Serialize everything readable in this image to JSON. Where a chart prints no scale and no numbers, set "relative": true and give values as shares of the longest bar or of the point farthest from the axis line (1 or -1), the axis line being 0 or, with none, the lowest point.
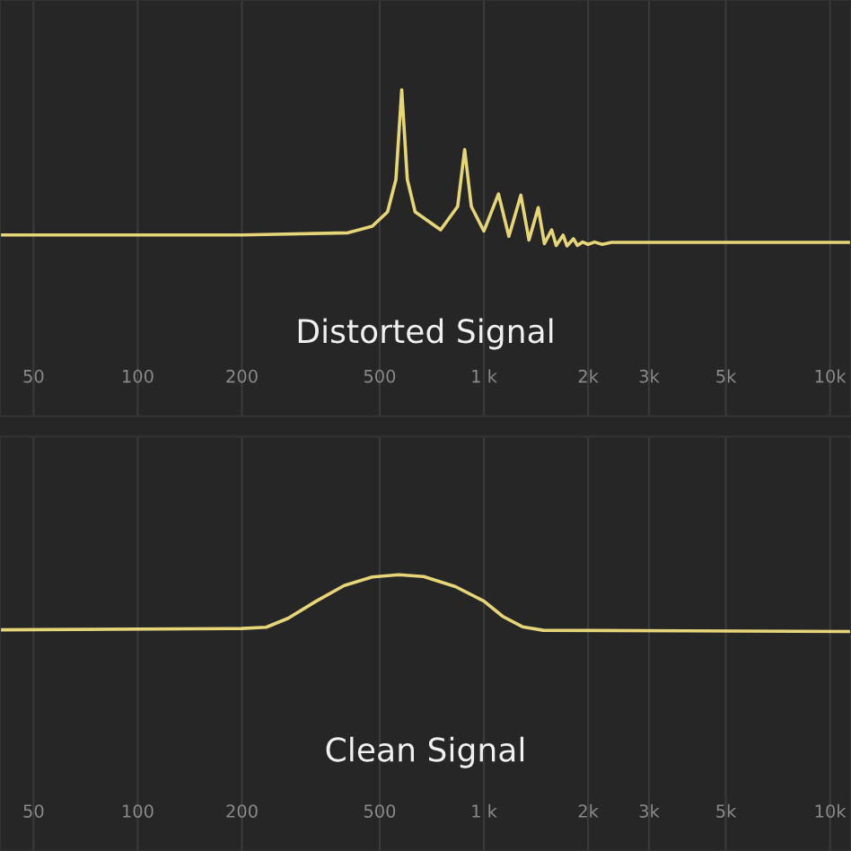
{
  "chart_data": [
    {
      "type": "line",
      "title": "Distorted Signal",
      "relative": true,
      "log": "x",
      "grid": "x",
      "tick_labels": "x",
      "marker": "none",
      "line_style": "solid",
      "xlim": [
        40,
        11500
      ],
      "xticks": [
        50,
        100,
        200,
        500,
        {
          "value": 1000,
          "label": "1 k"
        },
        {
          "value": 2000,
          "label": "2k"
        },
        {
          "value": 3000,
          "label": "3k"
        },
        {
          "value": 5000,
          "label": "5k"
        },
        {
          "value": 10000,
          "label": "10k"
        }
      ],
      "series": [
        {
          "color": "#e6d679",
          "x": [
            40,
            200,
            405,
            476,
            527,
            557,
            579,
            601,
            633,
            750,
            840,
            880,
            920,
            1000,
            1102,
            1181,
            1279,
            1350,
            1436,
            1496,
            1570,
            1618,
            1694,
            1738,
            1815,
            1862,
            1930,
            2000,
            2088,
            2198,
            2336,
            11500
          ],
          "values": [
            0.07,
            0.07,
            0.084,
            0.126,
            0.218,
            0.425,
            1,
            0.425,
            0.218,
            0.103,
            0.253,
            0.617,
            0.253,
            0.095,
            0.333,
            0.061,
            0.325,
            0.038,
            0.245,
            0.015,
            0.103,
            0.003,
            0.069,
            0,
            0.046,
            0.003,
            0.025,
            0.01,
            0.025,
            0.01,
            0.023,
            0.023
          ]
        }
      ]
    },
    {
      "type": "line",
      "title": "Clean Signal",
      "relative": true,
      "log": "x",
      "grid": "x",
      "tick_labels": "x",
      "marker": "none",
      "line_style": "solid",
      "xlim": [
        40,
        11500
      ],
      "xticks": [
        50,
        100,
        200,
        500,
        {
          "value": 1000,
          "label": "1 k"
        },
        {
          "value": 2000,
          "label": "2k"
        },
        {
          "value": 3000,
          "label": "3k"
        },
        {
          "value": 5000,
          "label": "5k"
        },
        {
          "value": 10000,
          "label": "10k"
        }
      ],
      "series": [
        {
          "color": "#e6d679",
          "x": [
            40,
            200,
            235,
            272,
            328,
            395,
            476,
            567,
            670,
            828,
            1000,
            1135,
            1292,
            1483,
            11500
          ],
          "values": [
            0.03,
            0.054,
            0.076,
            0.233,
            0.536,
            0.81,
            0.96,
            1,
            0.968,
            0.79,
            0.536,
            0.265,
            0.085,
            0.022,
            0
          ]
        }
      ]
    }
  ]
}
